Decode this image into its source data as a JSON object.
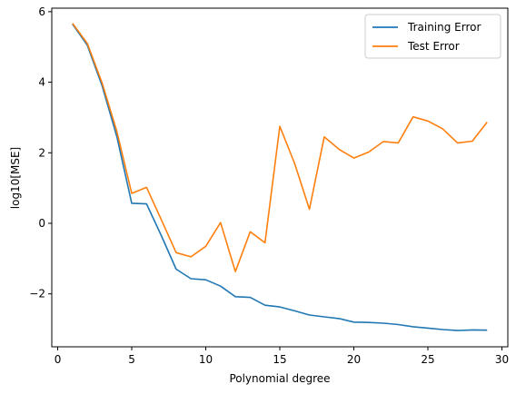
{
  "chart_data": {
    "type": "line",
    "title": "",
    "xlabel": "Polynomial degree",
    "ylabel": "log10[MSE]",
    "xlim": [
      -0.4,
      30.4
    ],
    "ylim": [
      -3.5,
      6.1
    ],
    "xticks": [
      0,
      5,
      10,
      15,
      20,
      25,
      30
    ],
    "xtick_labels": [
      "0",
      "5",
      "10",
      "15",
      "20",
      "25",
      "30"
    ],
    "yticks": [
      -2,
      0,
      2,
      4,
      6
    ],
    "ytick_labels": [
      "−2",
      "0",
      "2",
      "4",
      "6"
    ],
    "grid": false,
    "legend_position": "top-right",
    "x": [
      1,
      2,
      3,
      4,
      5,
      6,
      7,
      8,
      9,
      10,
      11,
      12,
      13,
      14,
      15,
      16,
      17,
      18,
      19,
      20,
      21,
      22,
      23,
      24,
      25,
      26,
      27,
      28,
      29
    ],
    "series": [
      {
        "name": "Training Error",
        "color": "#1f77b4",
        "values": [
          5.65,
          5.05,
          3.9,
          2.45,
          0.57,
          0.55,
          -0.35,
          -1.3,
          -1.57,
          -1.6,
          -1.78,
          -2.08,
          -2.1,
          -2.32,
          -2.37,
          -2.48,
          -2.6,
          -2.65,
          -2.7,
          -2.8,
          -2.81,
          -2.83,
          -2.87,
          -2.93,
          -2.97,
          -3.01,
          -3.04,
          -3.02,
          -3.03
        ]
      },
      {
        "name": "Test Error",
        "color": "#ff7f0e",
        "values": [
          5.67,
          5.1,
          3.98,
          2.6,
          0.85,
          1.02,
          0.1,
          -0.83,
          -0.95,
          -0.65,
          0.02,
          -1.37,
          -0.24,
          -0.55,
          2.75,
          1.7,
          0.4,
          2.45,
          2.1,
          1.85,
          2.02,
          2.32,
          2.28,
          3.02,
          2.9,
          2.68,
          2.28,
          2.33,
          2.87
        ]
      }
    ]
  }
}
